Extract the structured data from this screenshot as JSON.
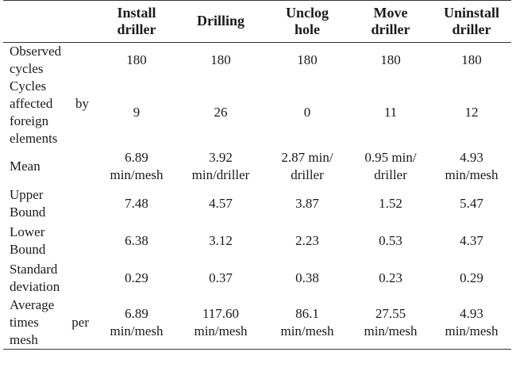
{
  "table": {
    "corner": "",
    "headers": [
      [
        "Install",
        "driller"
      ],
      [
        "Drilling"
      ],
      [
        "Unclog",
        "hole"
      ],
      [
        "Move",
        "driller"
      ],
      [
        "Uninstall",
        "driller"
      ]
    ],
    "rows": [
      {
        "key": "obs",
        "label": [
          "Observed",
          "cycles"
        ],
        "values": [
          [
            "180"
          ],
          [
            "180"
          ],
          [
            "180"
          ],
          [
            "180"
          ],
          [
            "180"
          ]
        ]
      },
      {
        "key": "cyc",
        "label": [
          "Cycles",
          "affected by",
          "foreign",
          "elements"
        ],
        "values": [
          [
            "9"
          ],
          [
            "26"
          ],
          [
            "0"
          ],
          [
            "11"
          ],
          [
            "12"
          ]
        ]
      },
      {
        "key": "mean",
        "label": [
          "Mean"
        ],
        "values": [
          [
            "6.89",
            "min/mesh"
          ],
          [
            "3.92",
            "min/driller"
          ],
          [
            "2.87 min/",
            "driller"
          ],
          [
            "0.95 min/",
            "driller"
          ],
          [
            "4.93",
            "min/mesh"
          ]
        ]
      },
      {
        "key": "ub",
        "label": [
          "Upper",
          "Bound"
        ],
        "values": [
          [
            "7.48"
          ],
          [
            "4.57"
          ],
          [
            "3.87"
          ],
          [
            "1.52"
          ],
          [
            "5.47"
          ]
        ]
      },
      {
        "key": "lb",
        "label": [
          "Lower",
          "Bound"
        ],
        "values": [
          [
            "6.38"
          ],
          [
            "3.12"
          ],
          [
            "2.23"
          ],
          [
            "0.53"
          ],
          [
            "4.37"
          ]
        ]
      },
      {
        "key": "sd",
        "label": [
          "Standard",
          "deviation"
        ],
        "values": [
          [
            "0.29"
          ],
          [
            "0.37"
          ],
          [
            "0.38"
          ],
          [
            "0.23"
          ],
          [
            "0.29"
          ]
        ]
      },
      {
        "key": "avg",
        "label": [
          "Average",
          "times per",
          "mesh"
        ],
        "values": [
          [
            "6.89",
            "min/mesh"
          ],
          [
            "117.60",
            "min/mesh"
          ],
          [
            "86.1",
            "min/mesh"
          ],
          [
            "27.55",
            "min/mesh"
          ],
          [
            "4.93",
            "min/mesh"
          ]
        ]
      }
    ]
  }
}
